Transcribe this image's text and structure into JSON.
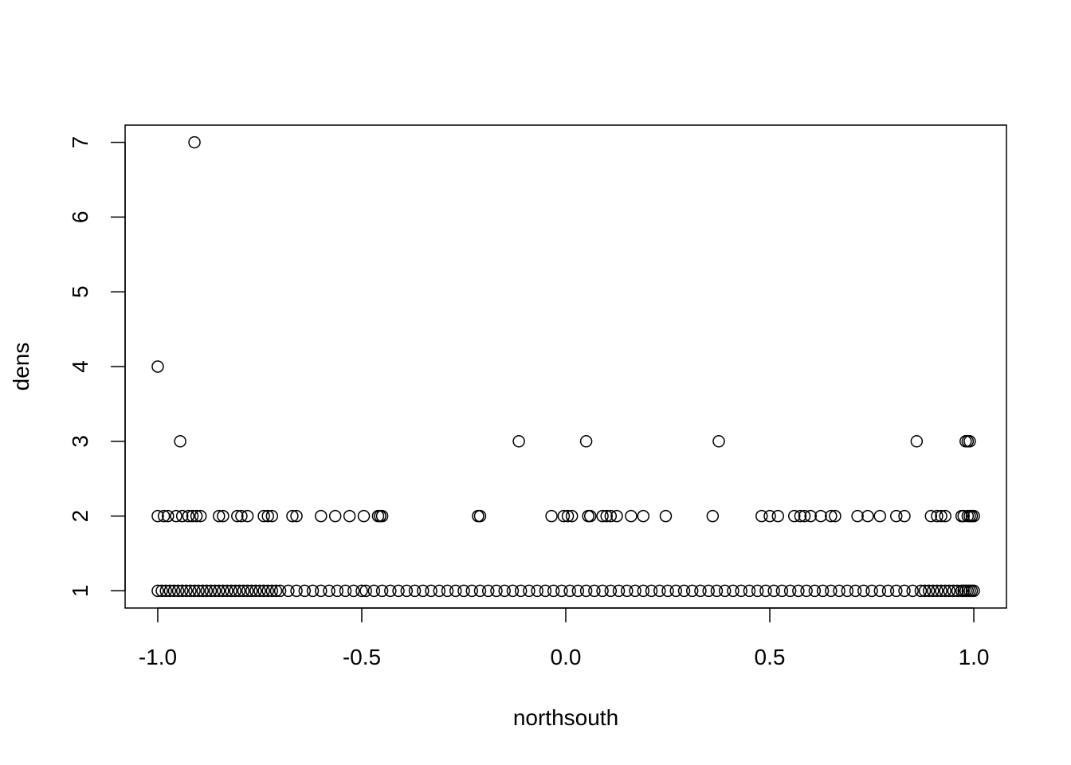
{
  "chart_data": {
    "type": "scatter",
    "title": "",
    "xlabel": "northsouth",
    "ylabel": "dens",
    "xlim": [
      -1.08,
      1.08
    ],
    "ylim": [
      0.77,
      7.23
    ],
    "x_ticks": [
      -1.0,
      -0.5,
      0.0,
      0.5,
      1.0
    ],
    "x_tick_labels": [
      "-1.0",
      "-0.5",
      "0.0",
      "0.5",
      "1.0"
    ],
    "y_ticks": [
      1,
      2,
      3,
      4,
      5,
      6,
      7
    ],
    "y_tick_labels": [
      "1",
      "2",
      "3",
      "4",
      "5",
      "6",
      "7"
    ],
    "grid": false,
    "legend": "none",
    "marker": "open-circle",
    "series": [
      {
        "points": [
          [
            -0.91,
            7
          ],
          [
            -1.0,
            4
          ],
          [
            -0.945,
            3
          ],
          [
            -0.115,
            3
          ],
          [
            0.05,
            3
          ],
          [
            0.375,
            3
          ],
          [
            0.86,
            3
          ],
          [
            0.98,
            3
          ],
          [
            0.985,
            3
          ],
          [
            0.99,
            3
          ],
          [
            -1.0,
            2
          ],
          [
            -0.985,
            2
          ],
          [
            -0.975,
            2
          ],
          [
            -0.955,
            2
          ],
          [
            -0.94,
            2
          ],
          [
            -0.925,
            2
          ],
          [
            -0.915,
            2
          ],
          [
            -0.905,
            2
          ],
          [
            -0.895,
            2
          ],
          [
            -0.85,
            2
          ],
          [
            -0.84,
            2
          ],
          [
            -0.805,
            2
          ],
          [
            -0.795,
            2
          ],
          [
            -0.78,
            2
          ],
          [
            -0.74,
            2
          ],
          [
            -0.73,
            2
          ],
          [
            -0.72,
            2
          ],
          [
            -0.67,
            2
          ],
          [
            -0.66,
            2
          ],
          [
            -0.6,
            2
          ],
          [
            -0.565,
            2
          ],
          [
            -0.53,
            2
          ],
          [
            -0.495,
            2
          ],
          [
            -0.46,
            2
          ],
          [
            -0.455,
            2
          ],
          [
            -0.45,
            2
          ],
          [
            -0.215,
            2
          ],
          [
            -0.21,
            2
          ],
          [
            -0.035,
            2
          ],
          [
            -0.005,
            2
          ],
          [
            0.005,
            2
          ],
          [
            0.015,
            2
          ],
          [
            0.055,
            2
          ],
          [
            0.06,
            2
          ],
          [
            0.09,
            2
          ],
          [
            0.1,
            2
          ],
          [
            0.11,
            2
          ],
          [
            0.125,
            2
          ],
          [
            0.16,
            2
          ],
          [
            0.19,
            2
          ],
          [
            0.245,
            2
          ],
          [
            0.36,
            2
          ],
          [
            0.48,
            2
          ],
          [
            0.5,
            2
          ],
          [
            0.52,
            2
          ],
          [
            0.56,
            2
          ],
          [
            0.575,
            2
          ],
          [
            0.585,
            2
          ],
          [
            0.6,
            2
          ],
          [
            0.625,
            2
          ],
          [
            0.65,
            2
          ],
          [
            0.66,
            2
          ],
          [
            0.715,
            2
          ],
          [
            0.74,
            2
          ],
          [
            0.77,
            2
          ],
          [
            0.81,
            2
          ],
          [
            0.83,
            2
          ],
          [
            0.895,
            2
          ],
          [
            0.91,
            2
          ],
          [
            0.92,
            2
          ],
          [
            0.93,
            2
          ],
          [
            0.97,
            2
          ],
          [
            0.975,
            2
          ],
          [
            0.985,
            2
          ],
          [
            0.99,
            2
          ],
          [
            0.995,
            2
          ],
          [
            1.0,
            2
          ],
          [
            -1.0,
            1
          ],
          [
            -0.99,
            1
          ],
          [
            -0.98,
            1
          ],
          [
            -0.97,
            1
          ],
          [
            -0.96,
            1
          ],
          [
            -0.95,
            1
          ],
          [
            -0.94,
            1
          ],
          [
            -0.93,
            1
          ],
          [
            -0.92,
            1
          ],
          [
            -0.91,
            1
          ],
          [
            -0.9,
            1
          ],
          [
            -0.89,
            1
          ],
          [
            -0.88,
            1
          ],
          [
            -0.87,
            1
          ],
          [
            -0.86,
            1
          ],
          [
            -0.85,
            1
          ],
          [
            -0.84,
            1
          ],
          [
            -0.83,
            1
          ],
          [
            -0.82,
            1
          ],
          [
            -0.81,
            1
          ],
          [
            -0.8,
            1
          ],
          [
            -0.79,
            1
          ],
          [
            -0.78,
            1
          ],
          [
            -0.77,
            1
          ],
          [
            -0.76,
            1
          ],
          [
            -0.75,
            1
          ],
          [
            -0.74,
            1
          ],
          [
            -0.73,
            1
          ],
          [
            -0.72,
            1
          ],
          [
            -0.71,
            1
          ],
          [
            -0.7,
            1
          ],
          [
            -0.68,
            1
          ],
          [
            -0.66,
            1
          ],
          [
            -0.64,
            1
          ],
          [
            -0.62,
            1
          ],
          [
            -0.6,
            1
          ],
          [
            -0.58,
            1
          ],
          [
            -0.56,
            1
          ],
          [
            -0.54,
            1
          ],
          [
            -0.52,
            1
          ],
          [
            -0.5,
            1
          ],
          [
            -0.49,
            1
          ],
          [
            -0.47,
            1
          ],
          [
            -0.45,
            1
          ],
          [
            -0.43,
            1
          ],
          [
            -0.41,
            1
          ],
          [
            -0.39,
            1
          ],
          [
            -0.37,
            1
          ],
          [
            -0.35,
            1
          ],
          [
            -0.33,
            1
          ],
          [
            -0.31,
            1
          ],
          [
            -0.29,
            1
          ],
          [
            -0.27,
            1
          ],
          [
            -0.25,
            1
          ],
          [
            -0.23,
            1
          ],
          [
            -0.21,
            1
          ],
          [
            -0.19,
            1
          ],
          [
            -0.17,
            1
          ],
          [
            -0.15,
            1
          ],
          [
            -0.13,
            1
          ],
          [
            -0.11,
            1
          ],
          [
            -0.09,
            1
          ],
          [
            -0.07,
            1
          ],
          [
            -0.05,
            1
          ],
          [
            -0.03,
            1
          ],
          [
            -0.01,
            1
          ],
          [
            0.01,
            1
          ],
          [
            0.03,
            1
          ],
          [
            0.05,
            1
          ],
          [
            0.07,
            1
          ],
          [
            0.09,
            1
          ],
          [
            0.11,
            1
          ],
          [
            0.13,
            1
          ],
          [
            0.15,
            1
          ],
          [
            0.17,
            1
          ],
          [
            0.19,
            1
          ],
          [
            0.21,
            1
          ],
          [
            0.23,
            1
          ],
          [
            0.25,
            1
          ],
          [
            0.27,
            1
          ],
          [
            0.29,
            1
          ],
          [
            0.31,
            1
          ],
          [
            0.33,
            1
          ],
          [
            0.35,
            1
          ],
          [
            0.37,
            1
          ],
          [
            0.39,
            1
          ],
          [
            0.41,
            1
          ],
          [
            0.43,
            1
          ],
          [
            0.45,
            1
          ],
          [
            0.47,
            1
          ],
          [
            0.49,
            1
          ],
          [
            0.51,
            1
          ],
          [
            0.53,
            1
          ],
          [
            0.55,
            1
          ],
          [
            0.57,
            1
          ],
          [
            0.59,
            1
          ],
          [
            0.61,
            1
          ],
          [
            0.63,
            1
          ],
          [
            0.65,
            1
          ],
          [
            0.67,
            1
          ],
          [
            0.69,
            1
          ],
          [
            0.71,
            1
          ],
          [
            0.73,
            1
          ],
          [
            0.75,
            1
          ],
          [
            0.77,
            1
          ],
          [
            0.79,
            1
          ],
          [
            0.81,
            1
          ],
          [
            0.83,
            1
          ],
          [
            0.85,
            1
          ],
          [
            0.87,
            1
          ],
          [
            0.88,
            1
          ],
          [
            0.89,
            1
          ],
          [
            0.9,
            1
          ],
          [
            0.91,
            1
          ],
          [
            0.92,
            1
          ],
          [
            0.93,
            1
          ],
          [
            0.94,
            1
          ],
          [
            0.95,
            1
          ],
          [
            0.96,
            1
          ],
          [
            0.97,
            1
          ],
          [
            0.975,
            1
          ],
          [
            0.98,
            1
          ],
          [
            0.985,
            1
          ],
          [
            0.99,
            1
          ],
          [
            0.995,
            1
          ],
          [
            1.0,
            1
          ]
        ]
      }
    ]
  }
}
